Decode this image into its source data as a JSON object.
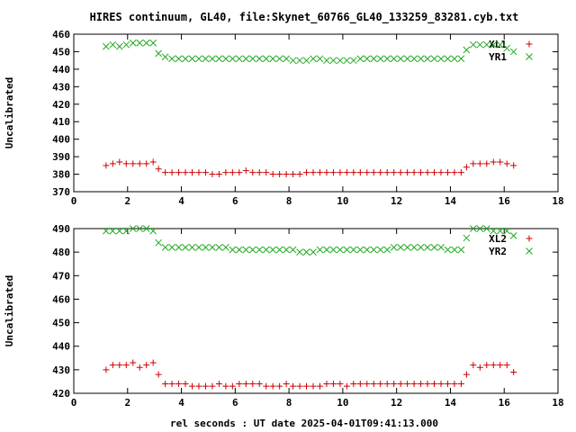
{
  "title": "HIRES continuum, GL40, file:Skynet_60766_GL40_133259_83281.cyb.txt",
  "xlabel": "rel seconds : UT date 2025-04-01T09:41:13.000",
  "colors": {
    "red": "#cc0000",
    "green": "#22aa22"
  },
  "chart_data": [
    {
      "type": "scatter",
      "ylabel": "Uncalibrated",
      "xlim": [
        0,
        18
      ],
      "ylim": [
        370,
        460
      ],
      "xticks": [
        0,
        2,
        4,
        6,
        8,
        10,
        12,
        14,
        16,
        18
      ],
      "yticks": [
        370,
        380,
        390,
        400,
        410,
        420,
        430,
        440,
        450,
        460
      ],
      "grid": false,
      "legend": "top-right",
      "series": [
        {
          "name": "XL1",
          "color": "#cc0000",
          "marker": "plus",
          "x": [
            1.2,
            1.45,
            1.7,
            1.95,
            2.2,
            2.45,
            2.7,
            2.95,
            3.15,
            3.4,
            3.65,
            3.9,
            4.15,
            4.4,
            4.65,
            4.9,
            5.15,
            5.4,
            5.65,
            5.9,
            6.15,
            6.4,
            6.65,
            6.9,
            7.15,
            7.4,
            7.65,
            7.9,
            8.15,
            8.4,
            8.65,
            8.9,
            9.15,
            9.4,
            9.65,
            9.9,
            10.15,
            10.4,
            10.65,
            10.9,
            11.15,
            11.4,
            11.65,
            11.9,
            12.15,
            12.4,
            12.65,
            12.9,
            13.15,
            13.4,
            13.65,
            13.9,
            14.15,
            14.4,
            14.6,
            14.85,
            15.1,
            15.35,
            15.6,
            15.85,
            16.1,
            16.35
          ],
          "y": [
            385,
            386,
            387,
            386,
            386,
            386,
            386,
            387,
            383,
            381,
            381,
            381,
            381,
            381,
            381,
            381,
            380,
            380,
            381,
            381,
            381,
            382,
            381,
            381,
            381,
            380,
            380,
            380,
            380,
            380,
            381,
            381,
            381,
            381,
            381,
            381,
            381,
            381,
            381,
            381,
            381,
            381,
            381,
            381,
            381,
            381,
            381,
            381,
            381,
            381,
            381,
            381,
            381,
            381,
            384,
            386,
            386,
            386,
            387,
            387,
            386,
            385
          ]
        },
        {
          "name": "YR1",
          "color": "#22aa22",
          "marker": "cross",
          "x": [
            1.2,
            1.45,
            1.7,
            1.95,
            2.2,
            2.45,
            2.7,
            2.95,
            3.15,
            3.4,
            3.65,
            3.9,
            4.15,
            4.4,
            4.65,
            4.9,
            5.15,
            5.4,
            5.65,
            5.9,
            6.15,
            6.4,
            6.65,
            6.9,
            7.15,
            7.4,
            7.65,
            7.9,
            8.15,
            8.4,
            8.65,
            8.9,
            9.15,
            9.4,
            9.65,
            9.9,
            10.15,
            10.4,
            10.65,
            10.9,
            11.15,
            11.4,
            11.65,
            11.9,
            12.15,
            12.4,
            12.65,
            12.9,
            13.15,
            13.4,
            13.65,
            13.9,
            14.15,
            14.4,
            14.6,
            14.85,
            15.1,
            15.35,
            15.6,
            15.85,
            16.1,
            16.35
          ],
          "y": [
            453,
            454,
            453,
            454,
            455,
            455,
            455,
            455,
            449,
            447,
            446,
            446,
            446,
            446,
            446,
            446,
            446,
            446,
            446,
            446,
            446,
            446,
            446,
            446,
            446,
            446,
            446,
            446,
            445,
            445,
            445,
            446,
            446,
            445,
            445,
            445,
            445,
            445,
            446,
            446,
            446,
            446,
            446,
            446,
            446,
            446,
            446,
            446,
            446,
            446,
            446,
            446,
            446,
            446,
            451,
            454,
            454,
            454,
            454,
            454,
            452,
            450
          ]
        }
      ]
    },
    {
      "type": "scatter",
      "ylabel": "Uncalibrated",
      "xlim": [
        0,
        18
      ],
      "ylim": [
        420,
        490
      ],
      "xticks": [
        0,
        2,
        4,
        6,
        8,
        10,
        12,
        14,
        16,
        18
      ],
      "yticks": [
        420,
        430,
        440,
        450,
        460,
        470,
        480,
        490
      ],
      "grid": false,
      "legend": "top-right",
      "series": [
        {
          "name": "XL2",
          "color": "#cc0000",
          "marker": "plus",
          "x": [
            1.2,
            1.45,
            1.7,
            1.95,
            2.2,
            2.45,
            2.7,
            2.95,
            3.15,
            3.4,
            3.65,
            3.9,
            4.15,
            4.4,
            4.65,
            4.9,
            5.15,
            5.4,
            5.65,
            5.9,
            6.15,
            6.4,
            6.65,
            6.9,
            7.15,
            7.4,
            7.65,
            7.9,
            8.15,
            8.4,
            8.65,
            8.9,
            9.15,
            9.4,
            9.65,
            9.9,
            10.15,
            10.4,
            10.65,
            10.9,
            11.15,
            11.4,
            11.65,
            11.9,
            12.15,
            12.4,
            12.65,
            12.9,
            13.15,
            13.4,
            13.65,
            13.9,
            14.15,
            14.4,
            14.6,
            14.85,
            15.1,
            15.35,
            15.6,
            15.85,
            16.1,
            16.35
          ],
          "y": [
            430,
            432,
            432,
            432,
            433,
            431,
            432,
            433,
            428,
            424,
            424,
            424,
            424,
            423,
            423,
            423,
            423,
            424,
            423,
            423,
            424,
            424,
            424,
            424,
            423,
            423,
            423,
            424,
            423,
            423,
            423,
            423,
            423,
            424,
            424,
            424,
            423,
            424,
            424,
            424,
            424,
            424,
            424,
            424,
            424,
            424,
            424,
            424,
            424,
            424,
            424,
            424,
            424,
            424,
            428,
            432,
            431,
            432,
            432,
            432,
            432,
            429
          ]
        },
        {
          "name": "YR2",
          "color": "#22aa22",
          "marker": "cross",
          "x": [
            1.2,
            1.45,
            1.7,
            1.95,
            2.2,
            2.45,
            2.7,
            2.95,
            3.15,
            3.4,
            3.65,
            3.9,
            4.15,
            4.4,
            4.65,
            4.9,
            5.15,
            5.4,
            5.65,
            5.9,
            6.15,
            6.4,
            6.65,
            6.9,
            7.15,
            7.4,
            7.65,
            7.9,
            8.15,
            8.4,
            8.65,
            8.9,
            9.15,
            9.4,
            9.65,
            9.9,
            10.15,
            10.4,
            10.65,
            10.9,
            11.15,
            11.4,
            11.65,
            11.9,
            12.15,
            12.4,
            12.65,
            12.9,
            13.15,
            13.4,
            13.65,
            13.9,
            14.15,
            14.4,
            14.6,
            14.85,
            15.1,
            15.35,
            15.6,
            15.85,
            16.1,
            16.35
          ],
          "y": [
            489,
            489,
            489,
            489,
            490,
            490,
            490,
            489,
            484,
            482,
            482,
            482,
            482,
            482,
            482,
            482,
            482,
            482,
            482,
            481,
            481,
            481,
            481,
            481,
            481,
            481,
            481,
            481,
            481,
            480,
            480,
            480,
            481,
            481,
            481,
            481,
            481,
            481,
            481,
            481,
            481,
            481,
            481,
            482,
            482,
            482,
            482,
            482,
            482,
            482,
            482,
            481,
            481,
            481,
            486,
            490,
            490,
            490,
            489,
            489,
            489,
            487
          ]
        }
      ]
    }
  ]
}
